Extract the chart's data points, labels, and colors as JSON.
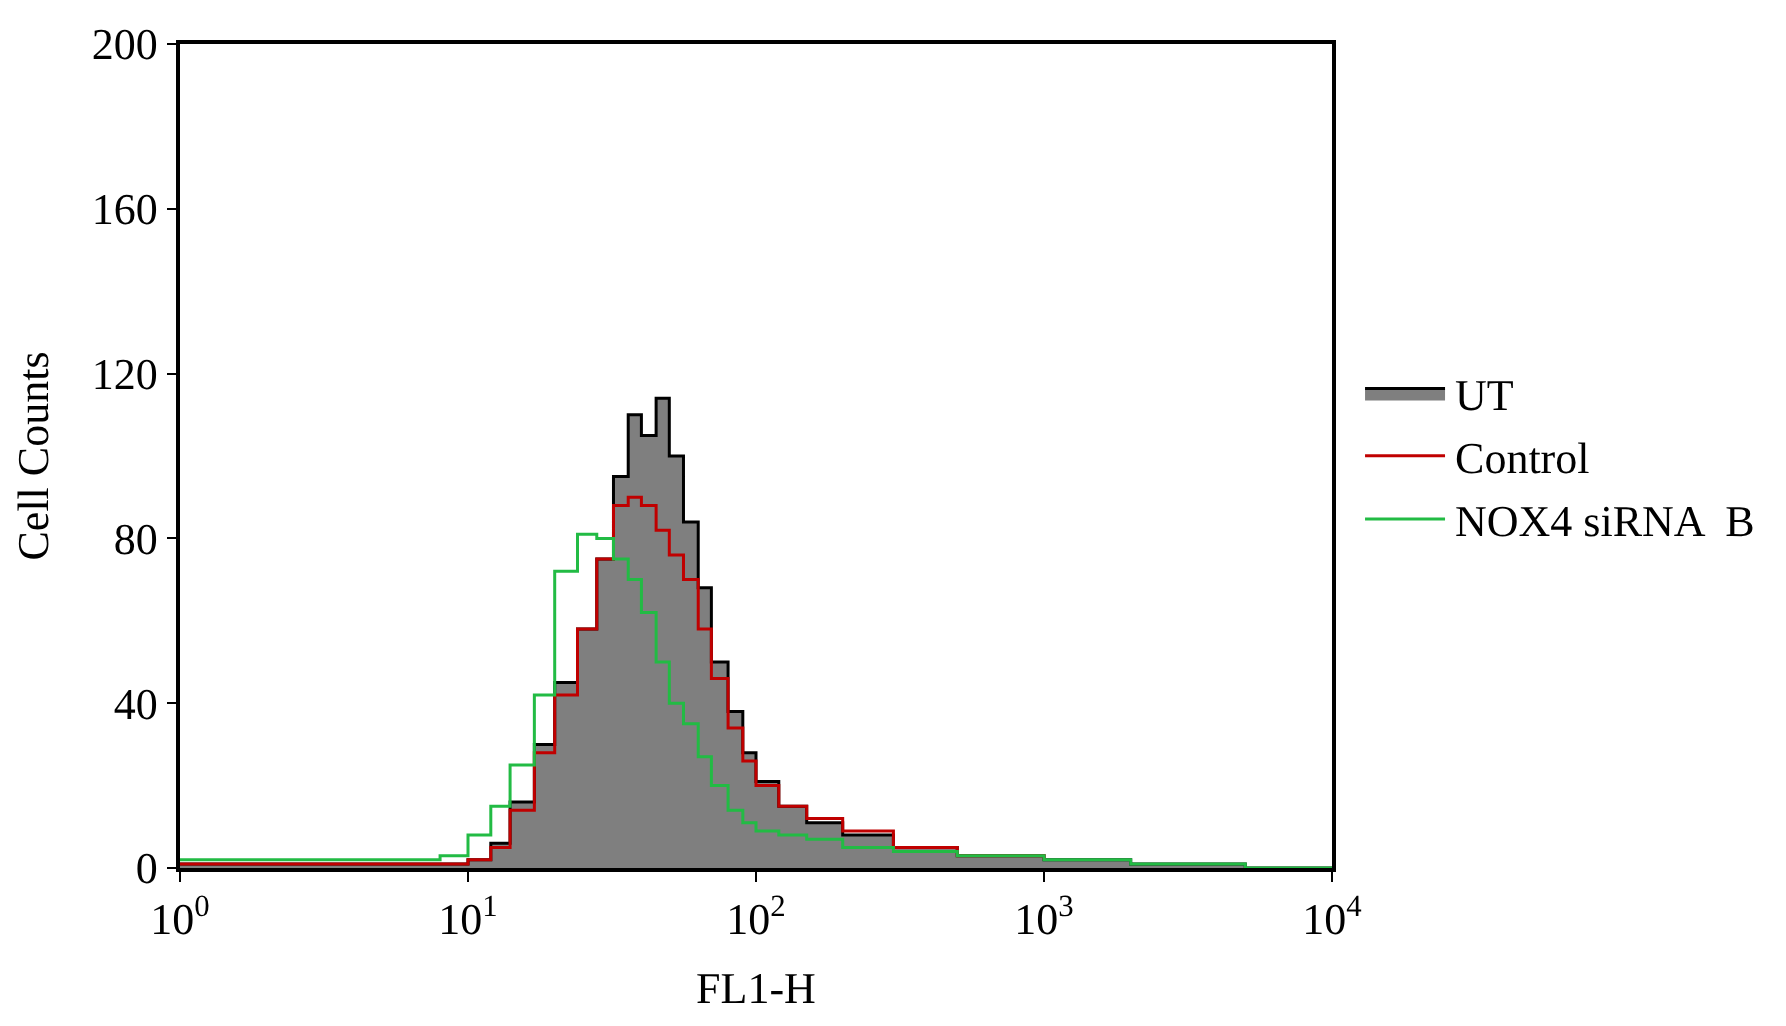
{
  "chart_data": {
    "type": "step",
    "xlabel": "FL1-H",
    "ylabel": "Cell Counts",
    "log": "x",
    "x": [
      1,
      2,
      4,
      6,
      8,
      10,
      12,
      14,
      17,
      20,
      24,
      28,
      32,
      36,
      40,
      45,
      50,
      56,
      63,
      70,
      80,
      90,
      100,
      120,
      150,
      200,
      300,
      500,
      1000,
      2000,
      5000,
      10000
    ],
    "series": [
      {
        "name": "UT",
        "type": "area",
        "color": "#7f7f7f",
        "values": [
          1,
          1,
          1,
          1,
          1,
          2,
          6,
          16,
          30,
          45,
          58,
          75,
          95,
          110,
          105,
          114,
          100,
          84,
          68,
          50,
          38,
          28,
          21,
          15,
          11,
          8,
          5,
          3,
          2,
          1,
          0,
          0
        ]
      },
      {
        "name": "Control",
        "color": "#c00000",
        "values": [
          1,
          1,
          1,
          1,
          1,
          2,
          5,
          14,
          28,
          42,
          58,
          75,
          88,
          90,
          88,
          82,
          76,
          70,
          58,
          46,
          34,
          26,
          20,
          15,
          12,
          9,
          5,
          3,
          2,
          null,
          null,
          null
        ]
      },
      {
        "name": "NOX4 siRNA  B",
        "color": "#22bb44",
        "values": [
          2,
          2,
          2,
          2,
          3,
          8,
          15,
          25,
          42,
          72,
          81,
          80,
          75,
          70,
          62,
          50,
          40,
          35,
          27,
          20,
          14,
          11,
          9,
          8,
          7,
          5,
          4,
          3,
          2,
          1,
          0,
          0
        ]
      }
    ],
    "xlim": [
      1,
      10000
    ],
    "xticks": [
      {
        "value": 1,
        "label": "10$^{0}$"
      },
      {
        "value": 10,
        "label": "10$^{1}$"
      },
      {
        "value": 100,
        "label": "10$^{2}$"
      },
      {
        "value": 1000,
        "label": "10$^{3}$"
      },
      {
        "value": 10000,
        "label": "10$^{4}$"
      }
    ],
    "ylim": [
      0,
      200
    ],
    "yticks": [
      0,
      40,
      80,
      120,
      160,
      200
    ],
    "legend": "right"
  }
}
